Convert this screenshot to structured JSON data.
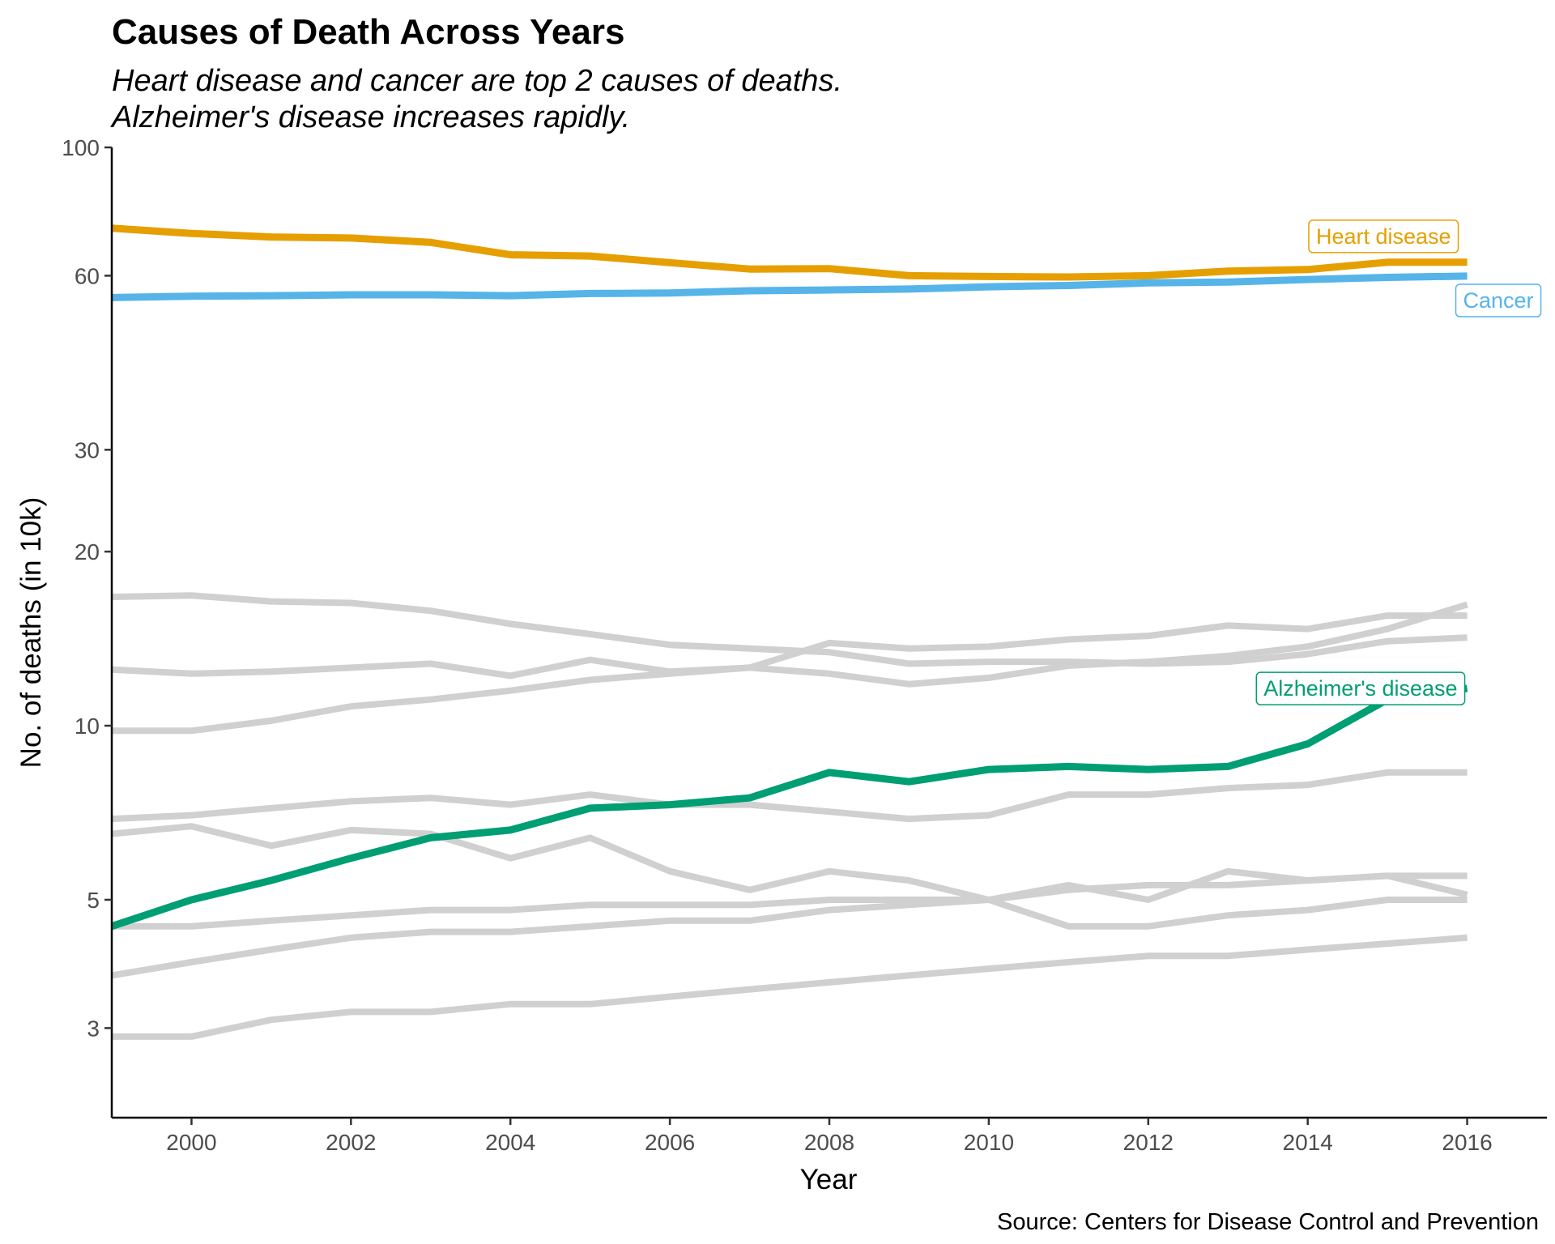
{
  "chart_data": {
    "type": "line",
    "title": "Causes of Death Across Years",
    "subtitle": [
      "Heart disease and cancer are top 2 causes of deaths.",
      "Alzheimer's disease increases rapidly."
    ],
    "caption": "Source: Centers for Disease Control and Prevention",
    "xlabel": "Year",
    "ylabel": "No. of deaths (in 10k)",
    "y_scale": "log",
    "xlim": [
      1999,
      2017
    ],
    "ylim": [
      2.1,
      100
    ],
    "x_ticks": [
      "2000",
      "2002",
      "2004",
      "2006",
      "2008",
      "2010",
      "2012",
      "2014",
      "2016"
    ],
    "y_ticks": [
      "3",
      "5",
      "10",
      "20",
      "30",
      "60",
      "100"
    ],
    "grid": false,
    "legend": "none",
    "x": [
      1999,
      2000,
      2001,
      2002,
      2003,
      2004,
      2005,
      2006,
      2007,
      2008,
      2009,
      2010,
      2011,
      2012,
      2013,
      2014,
      2015,
      2016
    ],
    "series": [
      {
        "name": "Heart disease",
        "color": "#E69F00",
        "highlight": true,
        "values": [
          72.5,
          71.0,
          70.0,
          69.7,
          68.5,
          65.2,
          64.9,
          63.2,
          61.6,
          61.7,
          60.0,
          59.8,
          59.7,
          60.0,
          61.1,
          61.5,
          63.3,
          63.3
        ]
      },
      {
        "name": "Cancer",
        "color": "#56B4E9",
        "highlight": true,
        "values": [
          55.0,
          55.3,
          55.4,
          55.6,
          55.6,
          55.4,
          55.9,
          56.0,
          56.5,
          56.7,
          56.9,
          57.4,
          57.7,
          58.3,
          58.5,
          59.1,
          59.6,
          59.9
        ]
      },
      {
        "name": "Alzheimer's disease",
        "color": "#009E73",
        "highlight": true,
        "values": [
          4.5,
          5.0,
          5.4,
          5.9,
          6.4,
          6.6,
          7.2,
          7.3,
          7.5,
          8.3,
          8.0,
          8.4,
          8.5,
          8.4,
          8.5,
          9.3,
          11.1,
          11.6
        ]
      },
      {
        "color": "#d0d0d0",
        "highlight": false,
        "values": [
          16.7,
          16.8,
          16.4,
          16.3,
          15.8,
          15.0,
          14.4,
          13.8,
          13.6,
          13.4,
          12.8,
          12.9,
          12.9,
          12.8,
          12.9,
          13.3,
          14.0,
          14.2
        ]
      },
      {
        "color": "#d0d0d0",
        "highlight": false,
        "values": [
          12.5,
          12.3,
          12.4,
          12.6,
          12.8,
          12.2,
          13.0,
          12.4,
          12.6,
          13.9,
          13.6,
          13.7,
          14.1,
          14.3,
          14.9,
          14.7,
          15.5,
          15.5
        ]
      },
      {
        "color": "#d0d0d0",
        "highlight": false,
        "values": [
          9.8,
          9.8,
          10.2,
          10.8,
          11.1,
          11.5,
          12.0,
          12.3,
          12.6,
          12.3,
          11.8,
          12.1,
          12.7,
          12.9,
          13.2,
          13.7,
          14.7,
          16.2
        ]
      },
      {
        "color": "#d0d0d0",
        "highlight": false,
        "values": [
          6.9,
          7.0,
          7.2,
          7.4,
          7.5,
          7.3,
          7.6,
          7.3,
          7.3,
          7.1,
          6.9,
          7.0,
          7.6,
          7.6,
          7.8,
          7.9,
          8.3,
          8.3
        ]
      },
      {
        "color": "#d0d0d0",
        "highlight": false,
        "values": [
          6.5,
          6.7,
          6.2,
          6.6,
          6.5,
          5.9,
          6.4,
          5.6,
          5.2,
          5.6,
          5.4,
          5.0,
          4.5,
          4.5,
          4.7,
          4.8,
          5.0,
          5.0
        ]
      },
      {
        "color": "#d0d0d0",
        "highlight": false,
        "values": [
          4.5,
          4.5,
          4.6,
          4.7,
          4.8,
          4.8,
          4.9,
          4.9,
          4.9,
          5.0,
          5.0,
          5.0,
          5.3,
          5.0,
          5.6,
          5.4,
          5.5,
          5.1
        ]
      },
      {
        "color": "#d0d0d0",
        "highlight": false,
        "values": [
          3.7,
          3.9,
          4.1,
          4.3,
          4.4,
          4.4,
          4.5,
          4.6,
          4.6,
          4.8,
          4.9,
          5.0,
          5.2,
          5.3,
          5.3,
          5.4,
          5.5,
          5.5
        ]
      },
      {
        "color": "#d0d0d0",
        "highlight": false,
        "values": [
          2.9,
          2.9,
          3.1,
          3.2,
          3.2,
          3.3,
          3.3,
          3.4,
          3.5,
          3.6,
          3.7,
          3.8,
          3.9,
          4.0,
          4.0,
          4.1,
          4.2,
          4.3
        ]
      }
    ]
  }
}
